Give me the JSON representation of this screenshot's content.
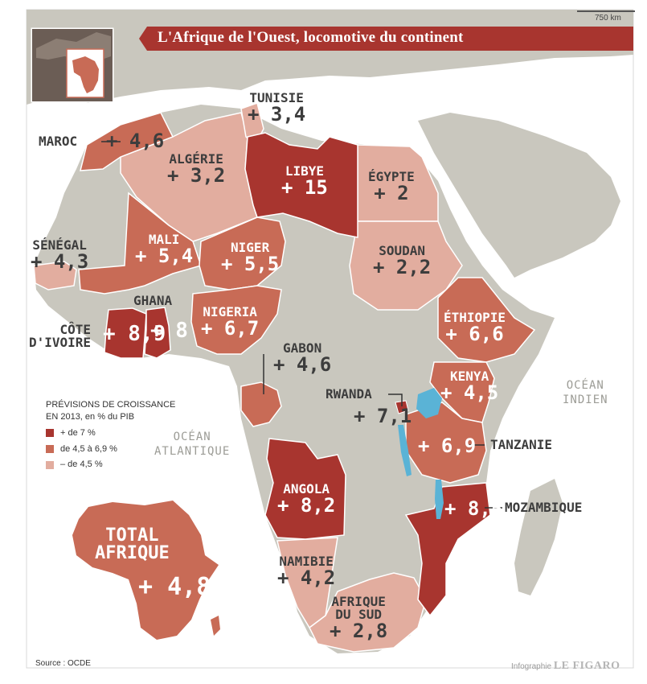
{
  "title": "L'Afrique de l'Ouest, locomotive du continent",
  "scale": "750 km",
  "colors": {
    "sea": "#ffffff",
    "land": "#c9c7be",
    "high": "#a8352f",
    "mid": "#c86b56",
    "low": "#e2ad9f",
    "water": "#5ab3d6"
  },
  "legend": {
    "title_line1": "PRÉVISIONS DE CROISSANCE",
    "title_line2": "EN 2013, en % du PIB",
    "items": [
      {
        "label": "+ de 7 %",
        "color": "#a8352f"
      },
      {
        "label": "de 4,5 à 6,9 %",
        "color": "#c86b56"
      },
      {
        "label": "– de 4,5 %",
        "color": "#e2ad9f"
      }
    ]
  },
  "countries": {
    "maroc": {
      "name": "MAROC",
      "value": "+ 4,6"
    },
    "tunisie": {
      "name": "TUNISIE",
      "value": "+ 3,4"
    },
    "algerie": {
      "name": "ALGÉRIE",
      "value": "+ 3,2"
    },
    "libye": {
      "name": "LIBYE",
      "value": "+ 15"
    },
    "egypte": {
      "name": "ÉGYPTE",
      "value": "+ 2"
    },
    "senegal": {
      "name": "SÉNÉGAL",
      "value": "+ 4,3"
    },
    "mali": {
      "name": "MALI",
      "value": "+ 5,4"
    },
    "niger": {
      "name": "NIGER",
      "value": "+ 5,5"
    },
    "soudan": {
      "name": "SOUDAN",
      "value": "+ 2,2"
    },
    "ghana": {
      "name": "GHANA",
      "value": "+ 8"
    },
    "cote_ivoire": {
      "name_line1": "CÔTE",
      "name_line2": "D'IVOIRE",
      "value": "+ 8,9"
    },
    "nigeria": {
      "name": "NIGERIA",
      "value": "+ 6,7"
    },
    "ethiopie": {
      "name": "ÉTHIOPIE",
      "value": "+ 6,6"
    },
    "gabon": {
      "name": "GABON",
      "value": "+ 4,6"
    },
    "kenya": {
      "name": "KENYA",
      "value": "+ 4,5"
    },
    "rwanda": {
      "name": "RWANDA",
      "value": "+ 7,1"
    },
    "tanzanie": {
      "name": "TANZANIE",
      "value": "+ 6,9"
    },
    "angola": {
      "name": "ANGOLA",
      "value": "+ 8,2"
    },
    "mozambique": {
      "name": "MOZAMBIQUE",
      "value": "+ 8,5"
    },
    "namibie": {
      "name": "NAMIBIE",
      "value": "+ 4,2"
    },
    "afrique_du_sud": {
      "name_line1": "AFRIQUE",
      "name_line2": "DU SUD",
      "value": "+ 2,8"
    }
  },
  "total": {
    "name_line1": "TOTAL",
    "name_line2": "AFRIQUE",
    "value": "+ 4,8"
  },
  "oceans": {
    "indien_line1": "OCÉAN",
    "indien_line2": "INDIEN",
    "atlantique_line1": "OCÉAN",
    "atlantique_line2": "ATLANTIQUE"
  },
  "source": "Source : OCDE",
  "credit_label": "Infographie",
  "credit_brand": "LE FIGARO"
}
